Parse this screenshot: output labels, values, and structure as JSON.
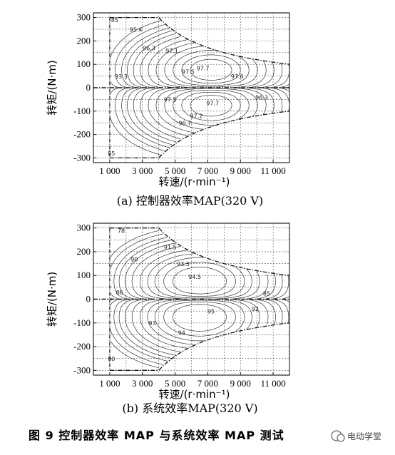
{
  "figure": {
    "caption": "图 9   控制器效率 MAP 与系统效率 MAP 测试",
    "watermark": "电动学堂"
  },
  "chart_data": [
    {
      "type": "contour",
      "caption": "(a) 控制器效率MAP(320 V)",
      "xlabel": "转速/(r·min⁻¹)",
      "ylabel": "转矩/(N·m)",
      "xlim": [
        0,
        12000
      ],
      "ylim": [
        -320,
        320
      ],
      "xticks": [
        "1 000",
        "3 000",
        "5 000",
        "7 000",
        "9 000",
        "11 000"
      ],
      "yticks": [
        "300",
        "200",
        "100",
        "0",
        "-100",
        "-200",
        "-300"
      ],
      "grid": true,
      "envelope": {
        "base_torque": 300,
        "corner_speed": 4000,
        "torque_at_max_speed": 95
      },
      "efficiency_labels": [
        {
          "speed": 6700,
          "torque": 75,
          "text": "97.7"
        },
        {
          "speed": 7300,
          "torque": -75,
          "text": "97.7"
        },
        {
          "speed": 8800,
          "torque": 40,
          "text": "97.6"
        },
        {
          "speed": 5800,
          "torque": 60,
          "text": "97.5"
        },
        {
          "speed": 6300,
          "torque": -130,
          "text": "97.2"
        },
        {
          "speed": 4800,
          "torque": 150,
          "text": "97.1"
        },
        {
          "speed": 3400,
          "torque": 160,
          "text": "96.3"
        },
        {
          "speed": 5600,
          "torque": -160,
          "text": "96.7"
        },
        {
          "speed": 2600,
          "torque": 240,
          "text": "95.4"
        },
        {
          "speed": 1700,
          "torque": 40,
          "text": "93.3"
        },
        {
          "speed": 1300,
          "torque": 280,
          "text": "85"
        },
        {
          "speed": 1100,
          "torque": -290,
          "text": "85"
        },
        {
          "speed": 10300,
          "torque": -50,
          "text": "96.3"
        },
        {
          "speed": 4700,
          "torque": -60,
          "text": "97.5"
        }
      ]
    },
    {
      "type": "contour",
      "caption": "(b) 系统效率MAP(320 V)",
      "xlabel": "转速/(r·min⁻¹)",
      "ylabel": "转矩/(N·m)",
      "xlim": [
        0,
        12000
      ],
      "ylim": [
        -320,
        320
      ],
      "xticks": [
        "1 000",
        "3 000",
        "5 000",
        "7 000",
        "9 000",
        "11 000"
      ],
      "yticks": [
        "300",
        "200",
        "100",
        "0",
        "-100",
        "-200",
        "-300"
      ],
      "grid": true,
      "envelope": {
        "base_torque": 300,
        "corner_speed": 4000,
        "torque_at_max_speed": 95
      },
      "efficiency_labels": [
        {
          "speed": 6200,
          "torque": 85,
          "text": "94.5"
        },
        {
          "speed": 7200,
          "torque": -60,
          "text": "95"
        },
        {
          "speed": 5500,
          "torque": 140,
          "text": "93.5"
        },
        {
          "speed": 4700,
          "torque": 210,
          "text": "91.5"
        },
        {
          "speed": 5400,
          "torque": -150,
          "text": "94"
        },
        {
          "speed": 3600,
          "torque": -110,
          "text": "93"
        },
        {
          "speed": 2500,
          "torque": 160,
          "text": "90"
        },
        {
          "speed": 1700,
          "torque": 280,
          "text": "78"
        },
        {
          "speed": 1600,
          "torque": 20,
          "text": "86"
        },
        {
          "speed": 9900,
          "torque": -50,
          "text": "92"
        },
        {
          "speed": 10600,
          "torque": 15,
          "text": "85"
        },
        {
          "speed": 1100,
          "torque": -260,
          "text": "80"
        }
      ]
    }
  ]
}
